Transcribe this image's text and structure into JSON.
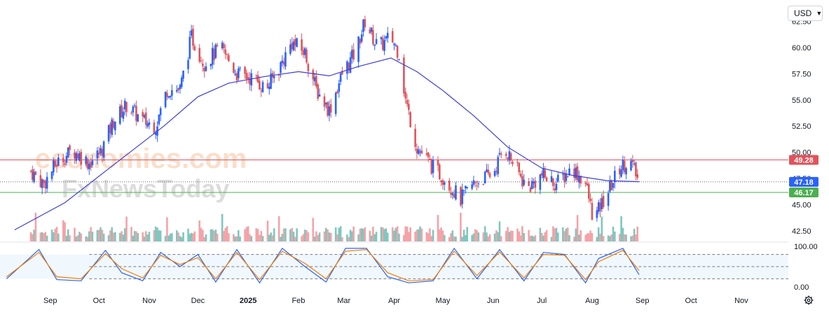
{
  "toolbar": {
    "currency": "USD"
  },
  "watermark": {
    "line1": "economies.com",
    "line2": "FxNewsToday"
  },
  "colors": {
    "up": "#2962ff",
    "down": "#e0535b",
    "ma": "#3b3fd8",
    "resistance": "#e0535b",
    "support": "#4caf50",
    "current": "#2962ff",
    "vol_up": "#7fc7bf",
    "vol_down": "#f4a3a7",
    "stoch_k": "#2962ff",
    "stoch_d": "#f57c00",
    "stoch_band": "#e3f2fd"
  },
  "chart_data": [
    {
      "type": "candlestick",
      "y_ticks": [
        "62.50",
        "60.00",
        "57.50",
        "55.00",
        "52.50",
        "50.00",
        "47.50",
        "45.00",
        "42.50"
      ],
      "ylim": [
        41.5,
        64.0
      ],
      "x_ticks": [
        "Sep",
        "Oct",
        "Nov",
        "Dec",
        "2025",
        "Feb",
        "Mar",
        "Apr",
        "May",
        "Jun",
        "Jul",
        "Aug",
        "Sep",
        "Oct",
        "Nov"
      ],
      "price_path": [
        [
          "2024-08-20",
          48.2
        ],
        [
          "2024-08-28",
          47.0
        ],
        [
          "2024-09-05",
          49.0
        ],
        [
          "2024-09-15",
          50.2
        ],
        [
          "2024-09-25",
          49.0
        ],
        [
          "2024-10-02",
          50.0
        ],
        [
          "2024-10-10",
          53.0
        ],
        [
          "2024-10-18",
          54.5
        ],
        [
          "2024-10-28",
          53.0
        ],
        [
          "2024-11-05",
          52.5
        ],
        [
          "2024-11-12",
          56.0
        ],
        [
          "2024-11-20",
          56.0
        ],
        [
          "2024-11-27",
          61.0
        ],
        [
          "2024-12-05",
          58.5
        ],
        [
          "2024-12-15",
          60.0
        ],
        [
          "2024-12-25",
          57.5
        ],
        [
          "2025-01-05",
          57.0
        ],
        [
          "2025-01-12",
          56.0
        ],
        [
          "2025-01-20",
          58.0
        ],
        [
          "2025-01-28",
          60.5
        ],
        [
          "2025-02-05",
          59.5
        ],
        [
          "2025-02-12",
          56.0
        ],
        [
          "2025-02-20",
          54.0
        ],
        [
          "2025-02-28",
          57.5
        ],
        [
          "2025-03-08",
          59.5
        ],
        [
          "2025-03-14",
          62.5
        ],
        [
          "2025-03-22",
          60.0
        ],
        [
          "2025-03-30",
          61.0
        ],
        [
          "2025-04-04",
          59.5
        ],
        [
          "2025-04-08",
          55.0
        ],
        [
          "2025-04-15",
          50.5
        ],
        [
          "2025-04-25",
          48.5
        ],
        [
          "2025-05-02",
          47.5
        ],
        [
          "2025-05-12",
          45.5
        ],
        [
          "2025-05-20",
          47.0
        ],
        [
          "2025-06-01",
          48.0
        ],
        [
          "2025-06-08",
          50.5
        ],
        [
          "2025-06-15",
          48.5
        ],
        [
          "2025-06-22",
          46.5
        ],
        [
          "2025-07-01",
          47.8
        ],
        [
          "2025-07-10",
          47.0
        ],
        [
          "2025-07-20",
          48.5
        ],
        [
          "2025-07-28",
          47.0
        ],
        [
          "2025-08-02",
          43.5
        ],
        [
          "2025-08-10",
          46.0
        ],
        [
          "2025-08-18",
          48.5
        ],
        [
          "2025-08-24",
          49.3
        ],
        [
          "2025-08-30",
          47.2
        ]
      ],
      "moving_average": [
        [
          "2024-08-10",
          42.6
        ],
        [
          "2024-09-10",
          45.2
        ],
        [
          "2024-10-10",
          48.8
        ],
        [
          "2024-11-10",
          52.5
        ],
        [
          "2024-12-01",
          55.3
        ],
        [
          "2024-12-20",
          56.6
        ],
        [
          "2025-01-10",
          57.2
        ],
        [
          "2025-02-01",
          57.7
        ],
        [
          "2025-02-20",
          57.3
        ],
        [
          "2025-03-10",
          58.2
        ],
        [
          "2025-03-30",
          59.0
        ],
        [
          "2025-04-15",
          57.7
        ],
        [
          "2025-05-01",
          55.9
        ],
        [
          "2025-05-20",
          53.5
        ],
        [
          "2025-06-10",
          50.5
        ],
        [
          "2025-07-01",
          48.5
        ],
        [
          "2025-07-20",
          47.8
        ],
        [
          "2025-08-10",
          47.3
        ],
        [
          "2025-08-30",
          47.2
        ]
      ],
      "levels": [
        {
          "label": "49.28",
          "value": 49.28,
          "kind": "resistance"
        },
        {
          "label": "47.18",
          "value": 47.18,
          "kind": "current"
        },
        {
          "label": "46.17",
          "value": 46.17,
          "kind": "support"
        }
      ]
    },
    {
      "type": "line",
      "name": "stochastic",
      "y_ticks": [
        "100.00",
        "0.00"
      ],
      "ylim": [
        0,
        100
      ],
      "band": [
        20,
        80
      ],
      "x": [
        "2024-08-05",
        "2024-08-25",
        "2024-09-05",
        "2024-09-20",
        "2024-10-05",
        "2024-10-15",
        "2024-10-28",
        "2024-11-08",
        "2024-11-20",
        "2024-12-01",
        "2024-12-12",
        "2024-12-25",
        "2025-01-08",
        "2025-01-22",
        "2025-02-05",
        "2025-02-18",
        "2025-03-02",
        "2025-03-15",
        "2025-03-28",
        "2025-04-10",
        "2025-04-25",
        "2025-05-08",
        "2025-05-22",
        "2025-06-05",
        "2025-06-20",
        "2025-07-02",
        "2025-07-15",
        "2025-07-28",
        "2025-08-05",
        "2025-08-20",
        "2025-08-30"
      ],
      "series": [
        {
          "values": [
            20,
            92,
            18,
            15,
            90,
            35,
            15,
            85,
            50,
            80,
            12,
            92,
            10,
            95,
            50,
            12,
            95,
            95,
            25,
            10,
            15,
            95,
            20,
            92,
            15,
            85,
            80,
            10,
            70,
            95,
            30
          ]
        },
        {
          "values": [
            25,
            85,
            25,
            20,
            82,
            45,
            22,
            78,
            55,
            72,
            20,
            85,
            18,
            88,
            58,
            20,
            88,
            92,
            35,
            15,
            18,
            88,
            28,
            86,
            22,
            80,
            78,
            18,
            62,
            90,
            40
          ]
        }
      ]
    }
  ]
}
